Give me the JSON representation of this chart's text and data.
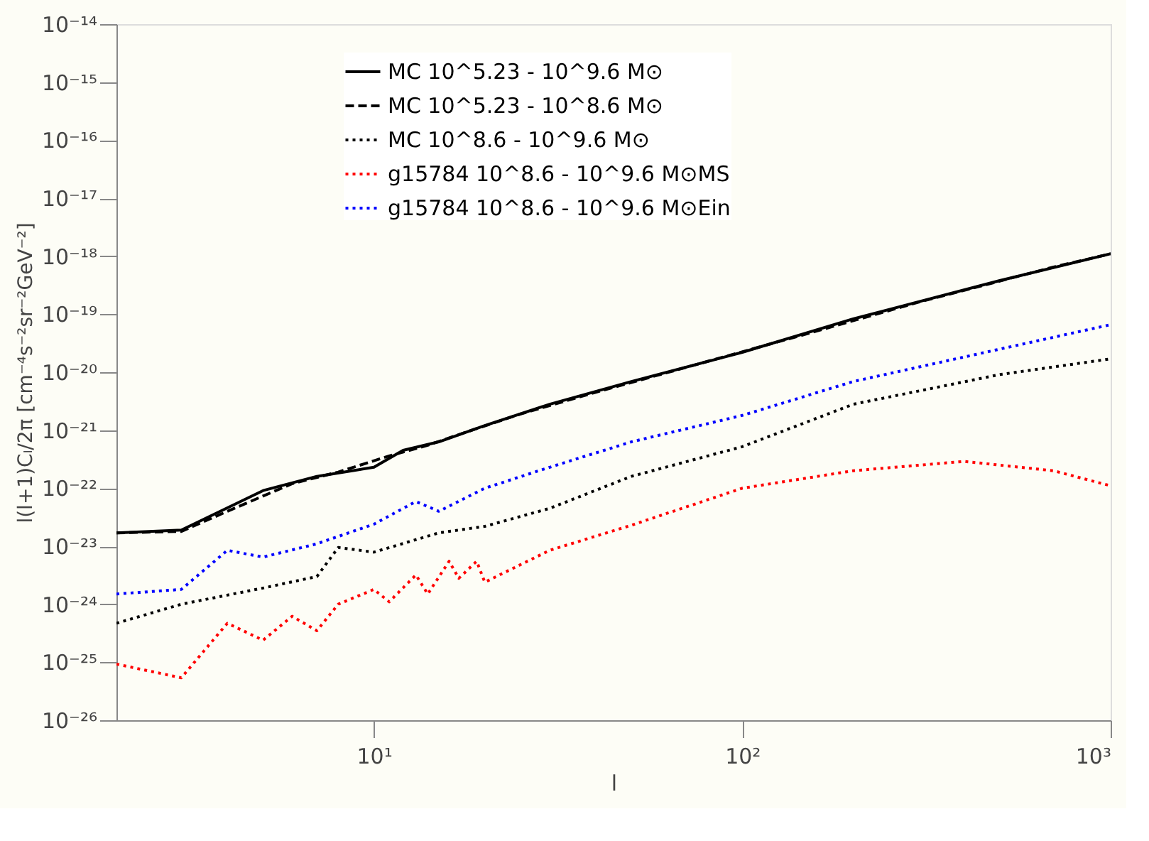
{
  "chart_data": {
    "type": "line",
    "xlabel": "l",
    "ylabel": "l(l+1)Cₗ/2π [cm⁻⁴s⁻²sr⁻²GeV⁻²]",
    "log": "xy",
    "grid": false,
    "legend": "top",
    "marker": "none",
    "xlim": [
      2,
      1000
    ],
    "xticks": [
      {
        "value": 10,
        "label": "10¹"
      },
      {
        "value": 100,
        "label": "10²"
      },
      {
        "value": 1000,
        "label": "10³"
      }
    ],
    "ylim": [
      1e-26,
      1e-14
    ],
    "yticks": [
      {
        "value": 1e-26,
        "label": "10⁻²⁶"
      },
      {
        "value": 1e-25,
        "label": "10⁻²⁵"
      },
      {
        "value": 1e-24,
        "label": "10⁻²⁴"
      },
      {
        "value": 1e-23,
        "label": "10⁻²³"
      },
      {
        "value": 1e-22,
        "label": "10⁻²²"
      },
      {
        "value": 1e-21,
        "label": "10⁻²¹"
      },
      {
        "value": 1e-20,
        "label": "10⁻²⁰"
      },
      {
        "value": 1e-19,
        "label": "10⁻¹⁹"
      },
      {
        "value": 1e-18,
        "label": "10⁻¹⁸"
      },
      {
        "value": 1e-17,
        "label": "10⁻¹⁷"
      },
      {
        "value": 1e-16,
        "label": "10⁻¹⁶"
      },
      {
        "value": 1e-15,
        "label": "10⁻¹⁵"
      },
      {
        "value": 1e-14,
        "label": "10⁻¹⁴"
      }
    ],
    "series": [
      {
        "name": "MC 10^5.23 - 10^9.6 M⊙",
        "color": "#000000",
        "line_style": "solid",
        "x": [
          2,
          3,
          5,
          7,
          10,
          12,
          15,
          20,
          30,
          50,
          100,
          200,
          500,
          1000
        ],
        "values": [
          1.7e-23,
          1.9e-23,
          9.1e-23,
          1.6e-22,
          2.3e-22,
          4.5e-22,
          6.3e-22,
          1.2e-21,
          2.8e-21,
          6.9e-21,
          2.2e-20,
          8.3e-20,
          3.8e-19,
          1.1e-18
        ]
      },
      {
        "name": "MC 10^5.23 - 10^8.6 M⊙",
        "color": "#000000",
        "line_style": "dashed",
        "x": [
          2,
          3,
          4,
          6,
          8,
          11,
          14,
          18,
          25,
          40,
          70,
          150,
          300,
          700,
          1000
        ],
        "values": [
          1.7e-23,
          1.8e-23,
          4e-23,
          1.2e-22,
          1.9e-22,
          3.6e-22,
          5.5e-22,
          9.5e-22,
          1.9e-21,
          4.5e-21,
          1.2e-20,
          4.6e-20,
          1.6e-19,
          6.5e-19,
          1.1e-18
        ]
      },
      {
        "name": "MC 10^8.6 - 10^9.6 M⊙",
        "color": "#000000",
        "line_style": "dotted",
        "x": [
          2,
          3,
          5,
          7,
          8,
          10,
          15,
          20,
          30,
          50,
          100,
          200,
          500,
          1000
        ],
        "values": [
          4.7e-25,
          1e-24,
          1.9e-24,
          3e-24,
          9.5e-24,
          7.9e-24,
          1.7e-23,
          2.2e-23,
          4.5e-23,
          1.6e-22,
          5.2e-22,
          2.8e-21,
          9.1e-21,
          1.7e-20
        ]
      },
      {
        "name": "g15784 10^8.6 - 10^9.6 M⊙MS",
        "color": "#ff0000",
        "line_style": "dotted",
        "x": [
          2,
          3,
          4,
          5,
          6,
          7,
          8,
          10,
          11,
          13,
          14,
          16,
          17,
          19,
          20,
          30,
          50,
          100,
          200,
          400,
          700,
          1000
        ],
        "values": [
          9.3e-26,
          5.4e-26,
          4.7e-25,
          2.4e-25,
          6.2e-25,
          3.5e-25,
          1e-24,
          1.8e-24,
          1.1e-24,
          3.2e-24,
          1.5e-24,
          5.5e-24,
          2.8e-24,
          5.5e-24,
          2.4e-24,
          8.5e-24,
          2.3e-23,
          1e-22,
          2e-22,
          2.9e-22,
          2e-22,
          1.1e-22
        ]
      },
      {
        "name": "g15784 10^8.6 - 10^9.6 M⊙Ein",
        "color": "#0000ff",
        "line_style": "dotted",
        "x": [
          2,
          3,
          4,
          5,
          7,
          10,
          13,
          15,
          20,
          30,
          50,
          100,
          200,
          500,
          1000
        ],
        "values": [
          1.5e-24,
          1.8e-24,
          8.5e-24,
          6.5e-24,
          1.1e-23,
          2.4e-23,
          5.9e-23,
          4e-23,
          1e-22,
          2.3e-22,
          6.3e-22,
          1.8e-21,
          6.9e-21,
          2.5e-20,
          6.6e-20
        ]
      }
    ]
  }
}
